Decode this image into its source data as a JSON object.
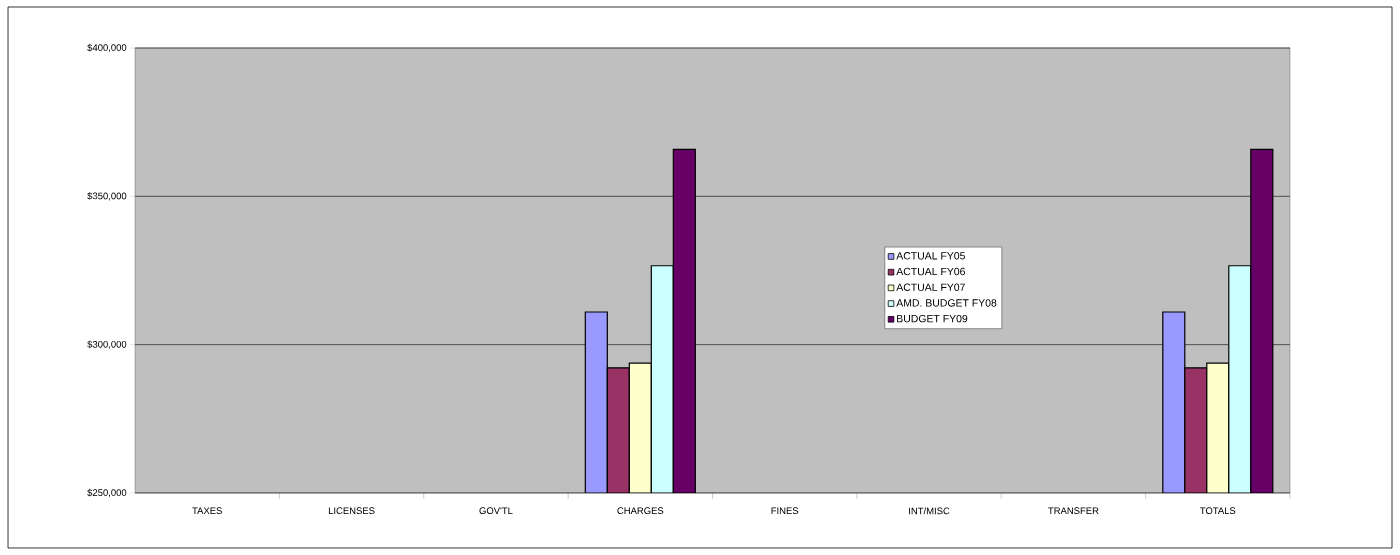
{
  "chart_data": {
    "type": "bar",
    "categories": [
      "TAXES",
      "LICENSES",
      "GOV'TL",
      "CHARGES",
      "FINES",
      "INT/MISC",
      "TRANSFER",
      "TOTALS"
    ],
    "series": [
      {
        "name": "ACTUAL FY05",
        "color": "#9999ff",
        "values": [
          null,
          null,
          null,
          311000,
          null,
          null,
          null,
          311000
        ]
      },
      {
        "name": "ACTUAL FY06",
        "color": "#993366",
        "values": [
          null,
          null,
          null,
          292200,
          null,
          null,
          null,
          292200
        ]
      },
      {
        "name": "ACTUAL FY07",
        "color": "#ffffcc",
        "values": [
          null,
          null,
          null,
          293800,
          null,
          null,
          null,
          293800
        ]
      },
      {
        "name": "AMD. BUDGET FY08",
        "color": "#ccffff",
        "values": [
          null,
          null,
          null,
          326600,
          null,
          null,
          null,
          326600
        ]
      },
      {
        "name": "BUDGET FY09",
        "color": "#660066",
        "values": [
          null,
          null,
          null,
          365800,
          null,
          null,
          null,
          365800
        ]
      }
    ],
    "ylim": [
      250000,
      400000
    ],
    "yticks": [
      {
        "value": 250000,
        "label": "$250,000"
      },
      {
        "value": 300000,
        "label": "$300,000"
      },
      {
        "value": 350000,
        "label": "$350,000"
      },
      {
        "value": 400000,
        "label": "$400,000"
      }
    ],
    "grid": "y",
    "legend": "right"
  }
}
